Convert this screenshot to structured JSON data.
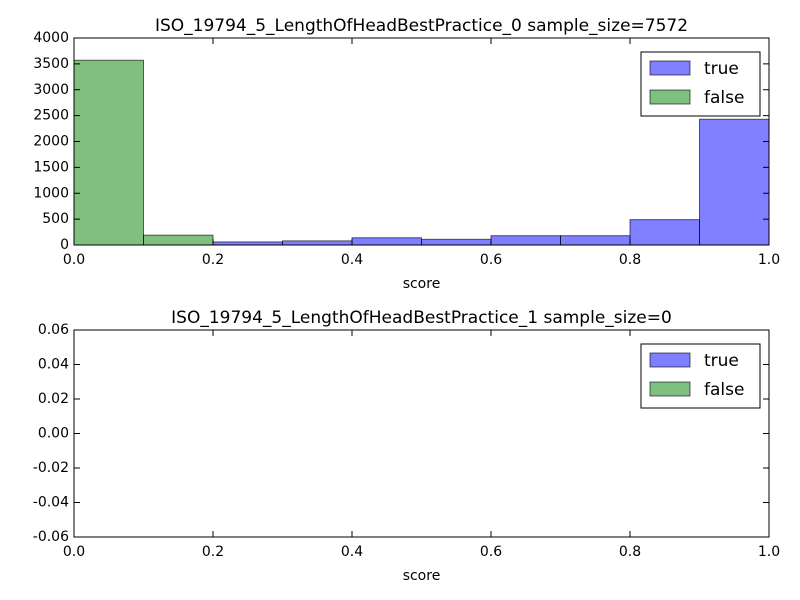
{
  "chart_data": [
    {
      "type": "histogram",
      "title": "ISO_19794_5_LengthOfHeadBestPractice_0 sample_size=7572",
      "x_label": "score",
      "bins": [
        0,
        0.1,
        0.2,
        0.3,
        0.4,
        0.5,
        0.6,
        0.7,
        0.8,
        0.9,
        1
      ],
      "series": [
        {
          "name": "true",
          "color": "#0000ff",
          "values": [
            0,
            0,
            60,
            80,
            140,
            110,
            180,
            180,
            490,
            2430
          ]
        },
        {
          "name": "false",
          "color": "#008000",
          "values": [
            3570,
            190,
            0,
            0,
            0,
            0,
            0,
            0,
            0,
            0
          ]
        }
      ],
      "xlim": [
        0,
        1
      ],
      "xticks": [
        {
          "value": 0,
          "label": "0.0"
        },
        0.2,
        0.4,
        0.6,
        0.8,
        {
          "value": 1,
          "label": "1.0"
        }
      ],
      "ylim": [
        0,
        4000
      ],
      "yticks": [
        0,
        500,
        1000,
        1500,
        2000,
        2500,
        3000,
        3500,
        4000
      ],
      "legend": "upper right"
    },
    {
      "type": "histogram",
      "title": "ISO_19794_5_LengthOfHeadBestPractice_1 sample_size=0",
      "x_label": "score",
      "bins": [
        0,
        0.1,
        0.2,
        0.3,
        0.4,
        0.5,
        0.6,
        0.7,
        0.8,
        0.9,
        1
      ],
      "series": [
        {
          "name": "true",
          "color": "#0000ff",
          "values": [
            0,
            0,
            0,
            0,
            0,
            0,
            0,
            0,
            0,
            0
          ]
        },
        {
          "name": "false",
          "color": "#008000",
          "values": [
            0,
            0,
            0,
            0,
            0,
            0,
            0,
            0,
            0,
            0
          ]
        }
      ],
      "xlim": [
        0,
        1
      ],
      "xticks": [
        {
          "value": 0,
          "label": "0.0"
        },
        0.2,
        0.4,
        0.6,
        0.8,
        {
          "value": 1,
          "label": "1.0"
        }
      ],
      "ylim": [
        -0.06,
        0.06
      ],
      "yticks": [
        -0.06,
        -0.04,
        -0.02,
        {
          "value": 0,
          "label": "0.00"
        },
        0.02,
        0.04,
        0.06
      ],
      "legend": "upper right"
    }
  ]
}
